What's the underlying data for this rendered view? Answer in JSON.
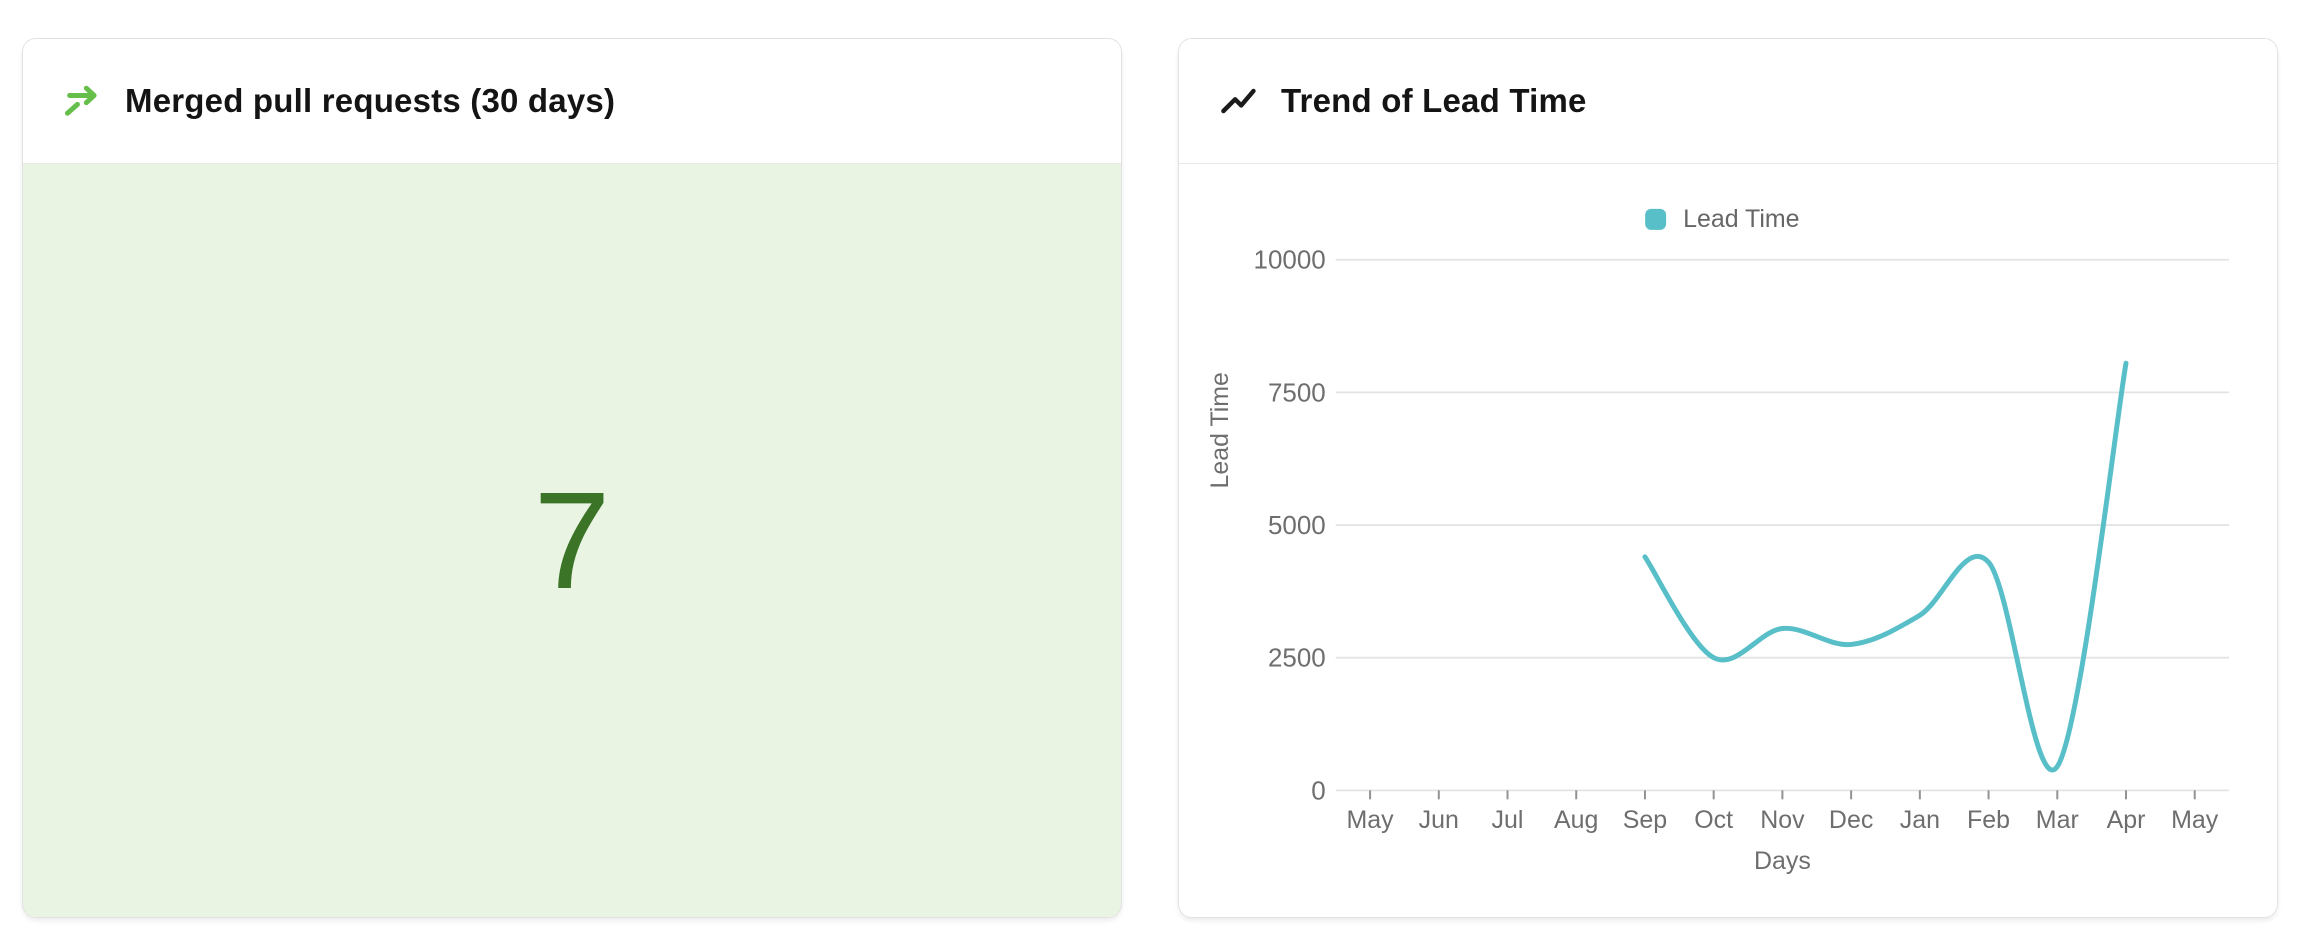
{
  "left_card": {
    "icon": "merge-arrow-icon",
    "title": "Merged pull requests (30 days)",
    "value": "7"
  },
  "right_card": {
    "icon": "trend-up-icon",
    "title": "Trend of Lead Time"
  },
  "chart_data": {
    "type": "line",
    "title": "Trend of Lead Time",
    "categories": [
      "May",
      "Jun",
      "Jul",
      "Aug",
      "Sep",
      "Oct",
      "Nov",
      "Dec",
      "Jan",
      "Feb",
      "Mar",
      "Apr",
      "May"
    ],
    "series": [
      {
        "name": "Lead Time",
        "color": "#58bfc8",
        "values": [
          null,
          null,
          null,
          null,
          4400,
          2500,
          3050,
          2750,
          3300,
          4300,
          450,
          8050,
          null
        ]
      }
    ],
    "xlabel": "Days",
    "ylabel": "Lead Time",
    "ylim": [
      0,
      10000
    ],
    "yticks": [
      0,
      2500,
      5000,
      7500,
      10000
    ],
    "legend_position": "top",
    "grid": true,
    "smooth": true,
    "axis_text_color": "#6e6e6e",
    "grid_color": "#e4e4e4",
    "tick_color": "#929292"
  },
  "colors": {
    "stat_value": "#3b7327",
    "stat_bg": "#e9f4e3",
    "merge_icon": "#66bf4a",
    "line": "#58bfc8",
    "card_border": "#e2e2e2",
    "title_text": "#141414"
  }
}
